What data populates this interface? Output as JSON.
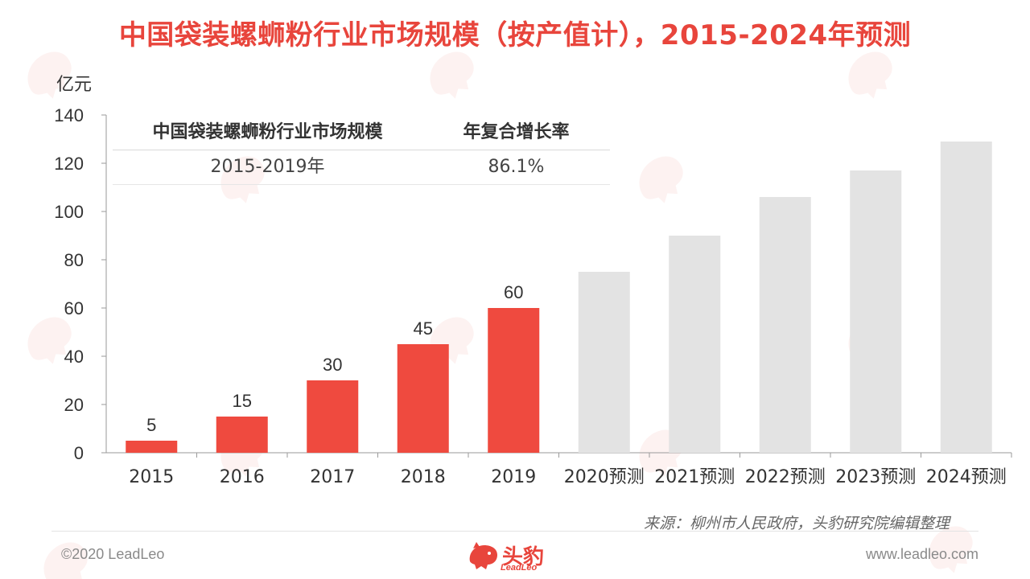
{
  "title": "中国袋装螺蛳粉行业市场规模（按产值计），2015-2024年预测",
  "chart_data": {
    "type": "bar",
    "categories": [
      "2015",
      "2016",
      "2017",
      "2018",
      "2019",
      "2020预测",
      "2021预测",
      "2022预测",
      "2023预测",
      "2024预测"
    ],
    "values": [
      5,
      15,
      30,
      45,
      60,
      75,
      90,
      106,
      117,
      129
    ],
    "data_labels": [
      "5",
      "15",
      "30",
      "45",
      "60",
      "",
      "",
      "",
      "",
      ""
    ],
    "bar_colors": [
      "#ef4a3f",
      "#ef4a3f",
      "#ef4a3f",
      "#ef4a3f",
      "#ef4a3f",
      "#e3e3e3",
      "#e3e3e3",
      "#e3e3e3",
      "#e3e3e3",
      "#e3e3e3"
    ],
    "ylabel": "亿元",
    "ylim": [
      0,
      140
    ],
    "yticks": [
      "0",
      "20",
      "40",
      "60",
      "80",
      "100",
      "120",
      "140"
    ],
    "grid": false
  },
  "cagr_table": {
    "headers": [
      "中国袋装螺蛳粉行业市场规模",
      "年复合增长率"
    ],
    "period": "2015-2019年",
    "rate": "86.1%"
  },
  "source": "来源：柳州市人民政府，头豹研究院编辑整理",
  "footer": {
    "copyright": "©2020 LeadLeo",
    "website": "www.leadleo.com",
    "logo_text": "头豹",
    "logo_sub": "LeadLeo"
  },
  "colors": {
    "accent": "#e8453c",
    "forecast": "#e3e3e3"
  }
}
